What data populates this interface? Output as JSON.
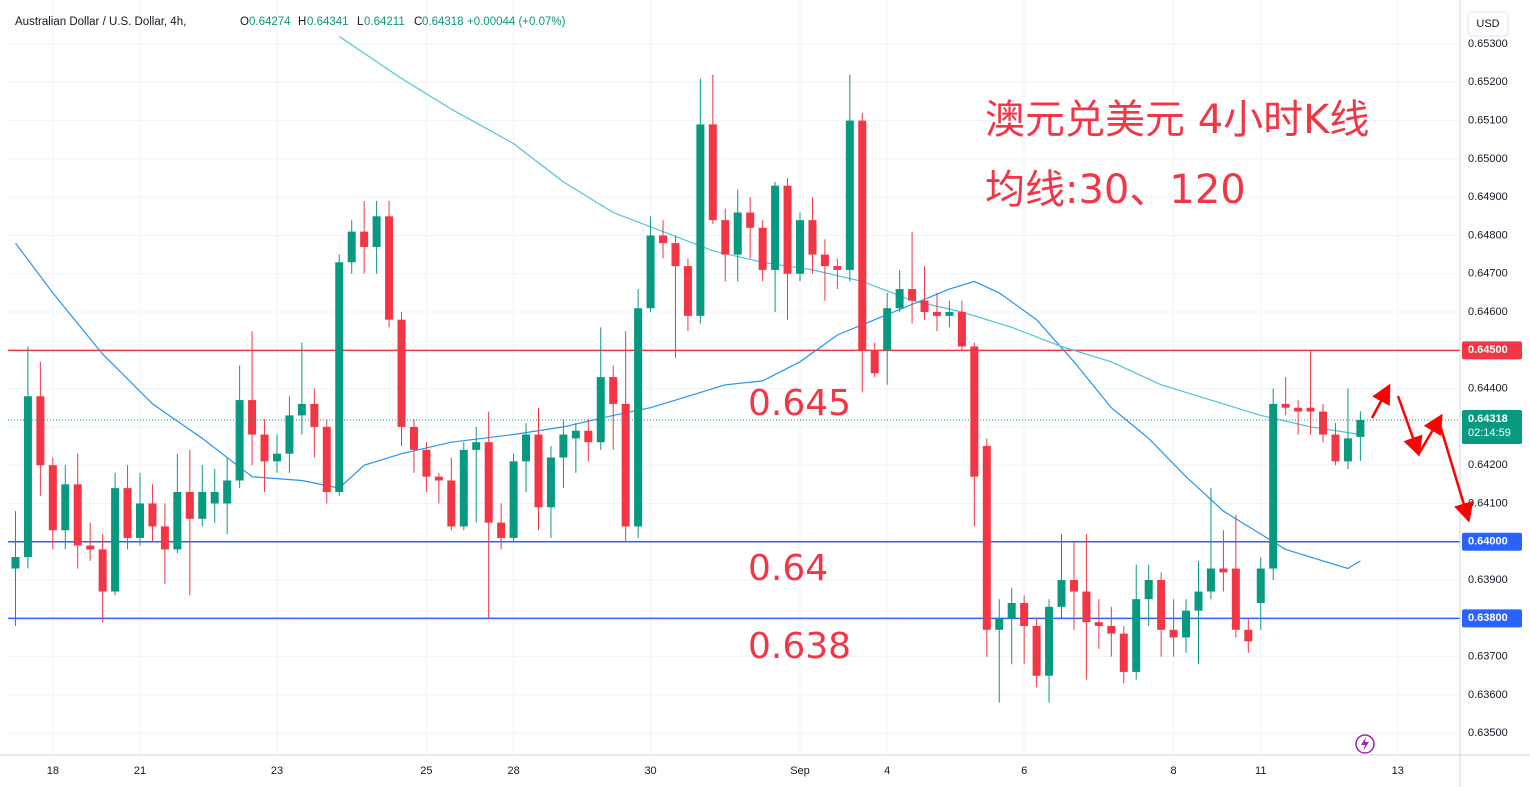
{
  "chart_data": {
    "type": "candlestick",
    "title": "澳元兑美元 4小时K线",
    "subtitle": "均线:30、120",
    "symbol": "Australian Dollar / U.S. Dollar, 4h,",
    "ohlc_letters": [
      "O",
      "H",
      "L",
      "C"
    ],
    "change": "+0.00044 (+0.07%)",
    "currency": "USD",
    "countdown": "02:14:59",
    "candles": {
      "up_color": "#089981",
      "down_color": "#f23645",
      "open": [
        0.6393,
        0.6396,
        0.6438,
        0.642,
        0.6403,
        0.6415,
        0.6399,
        0.6398,
        0.6387,
        0.6414,
        0.6401,
        0.641,
        0.6404,
        0.6398,
        0.6413,
        0.6406,
        0.641,
        0.641,
        0.6416,
        0.6437,
        0.6428,
        0.6421,
        0.6423,
        0.6433,
        0.6436,
        0.643,
        0.6413,
        0.6473,
        0.6481,
        0.6477,
        0.6485,
        0.6458,
        0.643,
        0.6424,
        0.6417,
        0.6416,
        0.6404,
        0.6424,
        0.6426,
        0.6405,
        0.6401,
        0.6421,
        0.6428,
        0.6409,
        0.6422,
        0.6427,
        0.6429,
        0.6426,
        0.6443,
        0.6436,
        0.6404,
        0.6461,
        0.648,
        0.6478,
        0.6472,
        0.6459,
        0.6509,
        0.6484,
        0.6475,
        0.6486,
        0.6482,
        0.6471,
        0.6493,
        0.647,
        0.6484,
        0.6475,
        0.6472,
        0.6471,
        0.651,
        0.645,
        0.645,
        0.6461,
        0.6466,
        0.6463,
        0.646,
        0.6459,
        0.646,
        0.6451,
        0.6425,
        0.6377,
        0.638,
        0.6384,
        0.6378,
        0.6365,
        0.6383,
        0.639,
        0.6387,
        0.6379,
        0.6378,
        0.6376,
        0.6366,
        0.6385,
        0.639,
        0.6377,
        0.6375,
        0.6382,
        0.6387,
        0.6393,
        0.6393,
        0.6377,
        0.6384,
        0.6393,
        0.6436,
        0.6435,
        0.6435,
        0.6434,
        0.6428,
        0.6421,
        0.64274
      ],
      "high": [
        0.6408,
        0.6451,
        0.6447,
        0.6422,
        0.642,
        0.6423,
        0.6405,
        0.6402,
        0.6418,
        0.642,
        0.6418,
        0.6415,
        0.641,
        0.6423,
        0.6424,
        0.642,
        0.6419,
        0.6422,
        0.6446,
        0.6455,
        0.6432,
        0.6428,
        0.6438,
        0.6452,
        0.644,
        0.6432,
        0.6475,
        0.6484,
        0.6489,
        0.6489,
        0.6489,
        0.646,
        0.6432,
        0.6426,
        0.6418,
        0.6422,
        0.6426,
        0.643,
        0.6434,
        0.641,
        0.6423,
        0.6431,
        0.6435,
        0.6425,
        0.6432,
        0.6431,
        0.6432,
        0.6456,
        0.6446,
        0.6455,
        0.6466,
        0.6485,
        0.6484,
        0.648,
        0.6474,
        0.6521,
        0.6522,
        0.6487,
        0.6492,
        0.649,
        0.6484,
        0.6494,
        0.6495,
        0.6486,
        0.649,
        0.6479,
        0.6474,
        0.6522,
        0.6512,
        0.6452,
        0.6465,
        0.6471,
        0.6481,
        0.6472,
        0.6465,
        0.6463,
        0.6463,
        0.6452,
        0.6427,
        0.6385,
        0.6388,
        0.6386,
        0.638,
        0.6385,
        0.6402,
        0.64,
        0.6402,
        0.6385,
        0.6383,
        0.6378,
        0.6394,
        0.6394,
        0.6392,
        0.6385,
        0.6385,
        0.6395,
        0.6414,
        0.6403,
        0.6407,
        0.638,
        0.6396,
        0.644,
        0.6443,
        0.6437,
        0.645,
        0.6436,
        0.6431,
        0.644,
        0.64341
      ],
      "low": [
        0.6378,
        0.6393,
        0.6412,
        0.6398,
        0.6398,
        0.6393,
        0.6395,
        0.6379,
        0.6386,
        0.6398,
        0.6399,
        0.64,
        0.6389,
        0.6397,
        0.6386,
        0.6404,
        0.6405,
        0.6402,
        0.6414,
        0.642,
        0.6413,
        0.6418,
        0.6418,
        0.6428,
        0.6422,
        0.641,
        0.6412,
        0.647,
        0.647,
        0.647,
        0.6456,
        0.6425,
        0.6418,
        0.6413,
        0.641,
        0.6403,
        0.6403,
        0.6405,
        0.638,
        0.6398,
        0.64,
        0.6413,
        0.6403,
        0.6401,
        0.6414,
        0.6418,
        0.6421,
        0.6424,
        0.6424,
        0.64,
        0.6401,
        0.646,
        0.6474,
        0.6448,
        0.6455,
        0.6457,
        0.6483,
        0.6468,
        0.6468,
        0.6474,
        0.6468,
        0.646,
        0.6458,
        0.6468,
        0.647,
        0.6463,
        0.6466,
        0.6468,
        0.6439,
        0.6443,
        0.6441,
        0.646,
        0.6457,
        0.6458,
        0.6455,
        0.6456,
        0.645,
        0.6404,
        0.637,
        0.6358,
        0.6368,
        0.6368,
        0.6362,
        0.6358,
        0.638,
        0.6377,
        0.6364,
        0.6372,
        0.637,
        0.6363,
        0.6364,
        0.6378,
        0.637,
        0.637,
        0.6371,
        0.6368,
        0.6385,
        0.6387,
        0.6375,
        0.6371,
        0.6377,
        0.639,
        0.6433,
        0.6428,
        0.6428,
        0.6426,
        0.642,
        0.6419,
        0.64211
      ],
      "close": [
        0.6396,
        0.6438,
        0.642,
        0.6403,
        0.6415,
        0.6399,
        0.6398,
        0.6387,
        0.6414,
        0.6401,
        0.641,
        0.6404,
        0.6398,
        0.6413,
        0.6406,
        0.6413,
        0.6413,
        0.6416,
        0.6437,
        0.6428,
        0.6421,
        0.6423,
        0.6433,
        0.6436,
        0.643,
        0.6413,
        0.6473,
        0.6481,
        0.6477,
        0.6485,
        0.6458,
        0.643,
        0.6424,
        0.6417,
        0.6416,
        0.6404,
        0.6424,
        0.6426,
        0.6405,
        0.6401,
        0.6421,
        0.6428,
        0.6409,
        0.6422,
        0.6428,
        0.6429,
        0.6426,
        0.6443,
        0.6436,
        0.6404,
        0.6461,
        0.648,
        0.6478,
        0.6472,
        0.6459,
        0.6509,
        0.6484,
        0.6475,
        0.6486,
        0.6482,
        0.6471,
        0.6493,
        0.647,
        0.6484,
        0.6475,
        0.6472,
        0.6471,
        0.651,
        0.645,
        0.6444,
        0.6461,
        0.6466,
        0.6463,
        0.646,
        0.6459,
        0.646,
        0.6451,
        0.6417,
        0.6377,
        0.638,
        0.6384,
        0.6378,
        0.6365,
        0.6383,
        0.639,
        0.6387,
        0.6379,
        0.6378,
        0.6376,
        0.6366,
        0.6385,
        0.639,
        0.6377,
        0.6375,
        0.6382,
        0.6387,
        0.6393,
        0.6392,
        0.6377,
        0.6374,
        0.6393,
        0.6436,
        0.6435,
        0.6434,
        0.6434,
        0.6428,
        0.6421,
        0.6427,
        0.64318
      ]
    },
    "series": [
      {
        "color": "#2196f3",
        "x": [
          0,
          3,
          7,
          11,
          15,
          19,
          23,
          26,
          28,
          31,
          35,
          40,
          44,
          48,
          51,
          54,
          57,
          60,
          63,
          66,
          69,
          72,
          75,
          77,
          79,
          82,
          85,
          88,
          91,
          94,
          97,
          100,
          102,
          105,
          107,
          108
        ],
        "values": [
          0.6478,
          0.6465,
          0.6449,
          0.6436,
          0.6427,
          0.6417,
          0.6416,
          0.6414,
          0.642,
          0.6423,
          0.6426,
          0.6428,
          0.643,
          0.6433,
          0.6435,
          0.6438,
          0.6441,
          0.6442,
          0.6447,
          0.6454,
          0.6458,
          0.6462,
          0.6466,
          0.6468,
          0.6465,
          0.6458,
          0.6447,
          0.6435,
          0.6427,
          0.6417,
          0.6408,
          0.6402,
          0.6398,
          0.6395,
          0.6393,
          0.6395
        ]
      },
      {
        "color": "#4fc3dc",
        "x": [
          26,
          31,
          35,
          40,
          44,
          48,
          52,
          56,
          60,
          64,
          68,
          72,
          76,
          80,
          84,
          88,
          92,
          96,
          100,
          104,
          108
        ],
        "values": [
          0.6532,
          0.6521,
          0.6513,
          0.6504,
          0.6494,
          0.6486,
          0.6481,
          0.6476,
          0.6473,
          0.6471,
          0.6468,
          0.6463,
          0.646,
          0.6456,
          0.6451,
          0.6447,
          0.6441,
          0.6437,
          0.6433,
          0.643,
          0.6428
        ]
      }
    ],
    "levels": [
      {
        "value": 0.645,
        "label": "0.64500",
        "color": "#f23645"
      },
      {
        "value": 0.64,
        "label": "0.64000",
        "color": "#2962ff"
      },
      {
        "value": 0.638,
        "label": "0.63800",
        "color": "#2962ff"
      }
    ],
    "annotations": [
      0.645,
      0.64,
      0.638
    ],
    "xlim": [
      -0.6,
      116
    ],
    "xticks": [
      {
        "value": 3,
        "label": "18"
      },
      {
        "value": 10,
        "label": "21"
      },
      {
        "value": 21,
        "label": "23"
      },
      {
        "value": 33,
        "label": "25"
      },
      {
        "value": 40,
        "label": "28"
      },
      {
        "value": 51,
        "label": "30"
      },
      {
        "value": 63,
        "label": "Sep"
      },
      {
        "value": 70,
        "label": "4"
      },
      {
        "value": 81,
        "label": "6"
      },
      {
        "value": 93,
        "label": "8"
      },
      {
        "value": 100,
        "label": "11"
      },
      {
        "value": 111,
        "label": "13"
      }
    ],
    "ylim": [
      0.63443,
      0.65415
    ],
    "yticks": [
      {
        "value": 0.653,
        "label": "0.65300"
      },
      {
        "value": 0.652,
        "label": "0.65200"
      },
      {
        "value": 0.651,
        "label": "0.65100"
      },
      {
        "value": 0.65,
        "label": "0.65000"
      },
      {
        "value": 0.649,
        "label": "0.64900"
      },
      {
        "value": 0.648,
        "label": "0.64800"
      },
      {
        "value": 0.647,
        "label": "0.64700"
      },
      {
        "value": 0.646,
        "label": "0.64600"
      },
      {
        "value": 0.645,
        "label": "0.64500"
      },
      {
        "value": 0.644,
        "label": "0.64400"
      },
      {
        "value": 0.643,
        "label": "0.64300"
      },
      {
        "value": 0.642,
        "label": "0.64200"
      },
      {
        "value": 0.641,
        "label": "0.64100"
      },
      {
        "value": 0.64,
        "label": "0.64000"
      },
      {
        "value": 0.639,
        "label": "0.63900"
      },
      {
        "value": 0.638,
        "label": "0.63800"
      },
      {
        "value": 0.637,
        "label": "0.63700"
      },
      {
        "value": 0.636,
        "label": "0.63600"
      },
      {
        "value": 0.635,
        "label": "0.63500"
      }
    ],
    "grid": true
  }
}
